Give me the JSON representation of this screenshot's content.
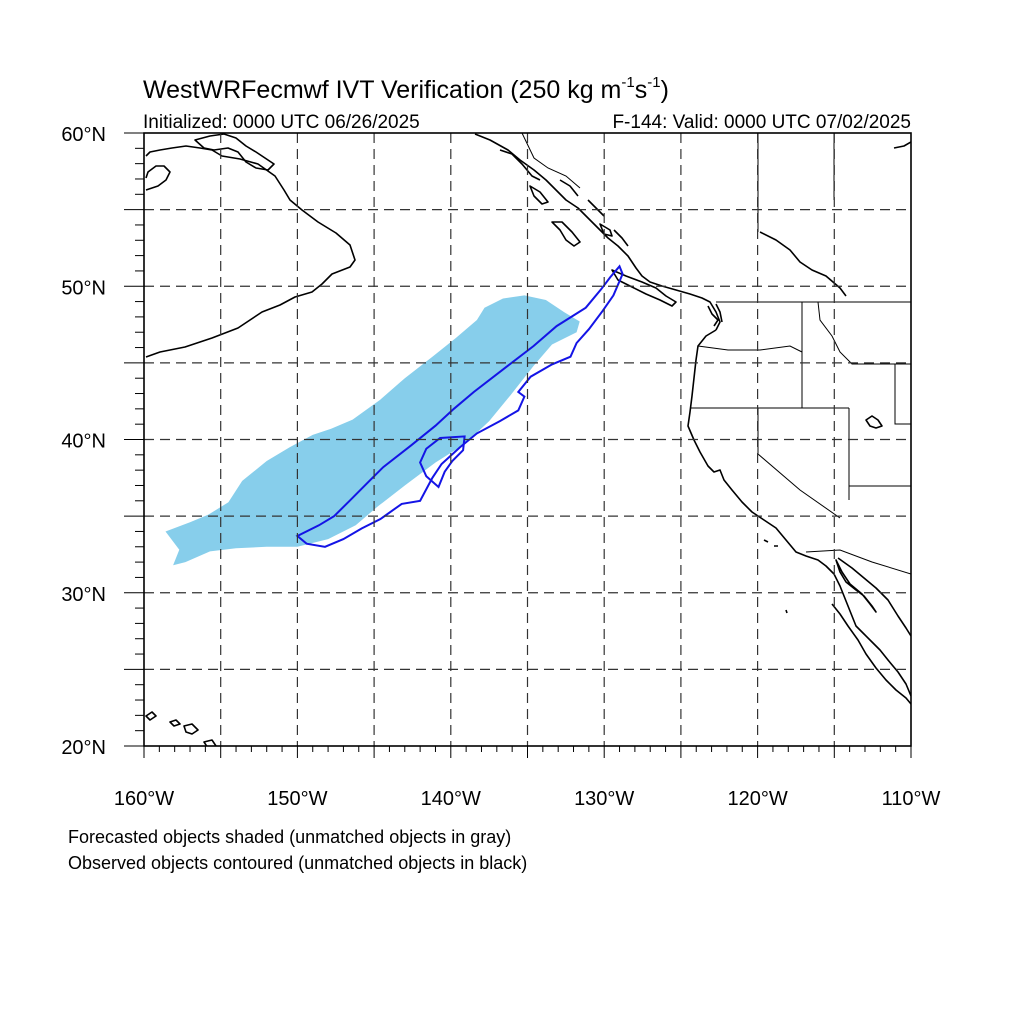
{
  "title": {
    "main": "WestWRFecmwf IVT Verification (250 kg m",
    "sup1": "-1",
    "mid": "s",
    "sup2": "-1",
    "end": ")"
  },
  "subtitle": {
    "left": "Initialized: 0000 UTC 06/26/2025",
    "right": "F-144: Valid: 0000 UTC 07/02/2025"
  },
  "map": {
    "lon_range": [
      -160,
      -110
    ],
    "lat_range": [
      20,
      60
    ],
    "grid_lons": [
      -155,
      -150,
      -145,
      -140,
      -135,
      -130,
      -125,
      -120,
      -115
    ],
    "grid_lats": [
      25,
      30,
      35,
      40,
      45,
      50,
      55
    ],
    "lat_labels": [
      {
        "lat": 60,
        "text": "60°N"
      },
      {
        "lat": 50,
        "text": "50°N"
      },
      {
        "lat": 40,
        "text": "40°N"
      },
      {
        "lat": 30,
        "text": "30°N"
      },
      {
        "lat": 20,
        "text": "20°N"
      }
    ],
    "lon_labels": [
      {
        "lon": -160,
        "text": "160°W"
      },
      {
        "lon": -150,
        "text": "150°W"
      },
      {
        "lon": -140,
        "text": "140°W"
      },
      {
        "lon": -130,
        "text": "130°W"
      },
      {
        "lon": -120,
        "text": "120°W"
      },
      {
        "lon": -110,
        "text": "110°W"
      }
    ],
    "forecast_object": {
      "color": "#87ceeb",
      "outline": [
        [
          -158.6,
          34.0
        ],
        [
          -157.0,
          34.6
        ],
        [
          -155.8,
          35.1
        ],
        [
          -154.5,
          35.9
        ],
        [
          -153.6,
          37.3
        ],
        [
          -152.0,
          38.6
        ],
        [
          -150.5,
          39.5
        ],
        [
          -149.0,
          40.3
        ],
        [
          -147.8,
          40.7
        ],
        [
          -146.4,
          41.3
        ],
        [
          -144.6,
          42.6
        ],
        [
          -143.0,
          44.0
        ],
        [
          -141.2,
          45.4
        ],
        [
          -139.7,
          46.6
        ],
        [
          -138.3,
          47.8
        ],
        [
          -137.8,
          48.6
        ],
        [
          -136.6,
          49.2
        ],
        [
          -135.2,
          49.4
        ],
        [
          -133.8,
          49.1
        ],
        [
          -132.6,
          48.3
        ],
        [
          -131.6,
          47.7
        ],
        [
          -131.8,
          47.0
        ],
        [
          -133.4,
          46.2
        ],
        [
          -134.6,
          44.8
        ],
        [
          -136.1,
          42.9
        ],
        [
          -137.5,
          41.2
        ],
        [
          -139.1,
          39.7
        ],
        [
          -141.0,
          38.5
        ],
        [
          -143.0,
          37.0
        ],
        [
          -144.8,
          35.6
        ],
        [
          -146.2,
          34.4
        ],
        [
          -148.0,
          33.5
        ],
        [
          -150.0,
          33.0
        ],
        [
          -152.0,
          33.0
        ],
        [
          -154.0,
          32.9
        ],
        [
          -155.7,
          32.7
        ],
        [
          -157.3,
          32.0
        ],
        [
          -158.1,
          31.8
        ],
        [
          -157.7,
          32.8
        ],
        [
          -158.6,
          34.0
        ]
      ]
    },
    "observed_object": {
      "color": "#1414e6",
      "outline": [
        [
          -129.0,
          51.3
        ],
        [
          -128.8,
          50.8
        ],
        [
          -129.4,
          49.4
        ],
        [
          -130.1,
          48.4
        ],
        [
          -131.0,
          47.2
        ],
        [
          -131.8,
          46.3
        ],
        [
          -132.2,
          45.4
        ],
        [
          -133.4,
          44.9
        ],
        [
          -134.8,
          44.1
        ],
        [
          -135.6,
          43.1
        ],
        [
          -135.2,
          42.8
        ],
        [
          -135.6,
          41.9
        ],
        [
          -136.8,
          41.2
        ],
        [
          -138.3,
          40.4
        ],
        [
          -139.4,
          39.5
        ],
        [
          -140.6,
          38.4
        ],
        [
          -141.2,
          37.5
        ],
        [
          -142.0,
          36.0
        ],
        [
          -143.2,
          35.8
        ],
        [
          -144.6,
          34.8
        ],
        [
          -145.8,
          34.2
        ],
        [
          -147.0,
          33.5
        ],
        [
          -148.2,
          33.0
        ],
        [
          -149.4,
          33.2
        ],
        [
          -150.0,
          33.7
        ],
        [
          -148.6,
          34.4
        ],
        [
          -147.6,
          35.0
        ],
        [
          -146.6,
          36.0
        ],
        [
          -145.2,
          37.4
        ],
        [
          -144.4,
          38.2
        ],
        [
          -142.6,
          39.6
        ],
        [
          -141.0,
          40.9
        ],
        [
          -139.8,
          42.0
        ],
        [
          -138.5,
          43.1
        ],
        [
          -136.3,
          44.8
        ],
        [
          -134.6,
          46.1
        ],
        [
          -133.1,
          47.4
        ],
        [
          -131.2,
          48.6
        ],
        [
          -130.2,
          49.8
        ],
        [
          -129.6,
          50.6
        ],
        [
          -129.0,
          51.3
        ]
      ],
      "inner_outline": [
        [
          -140.8,
          36.9
        ],
        [
          -140.4,
          37.9
        ],
        [
          -139.9,
          38.6
        ],
        [
          -139.2,
          39.3
        ],
        [
          -139.1,
          40.2
        ],
        [
          -140.7,
          40.1
        ],
        [
          -141.6,
          39.4
        ],
        [
          -142.0,
          38.5
        ],
        [
          -141.6,
          37.6
        ],
        [
          -140.8,
          36.9
        ]
      ]
    }
  },
  "footnotes": [
    "Forecasted objects shaded (unmatched objects in gray)",
    "Observed objects contoured (unmatched objects in black)"
  ]
}
